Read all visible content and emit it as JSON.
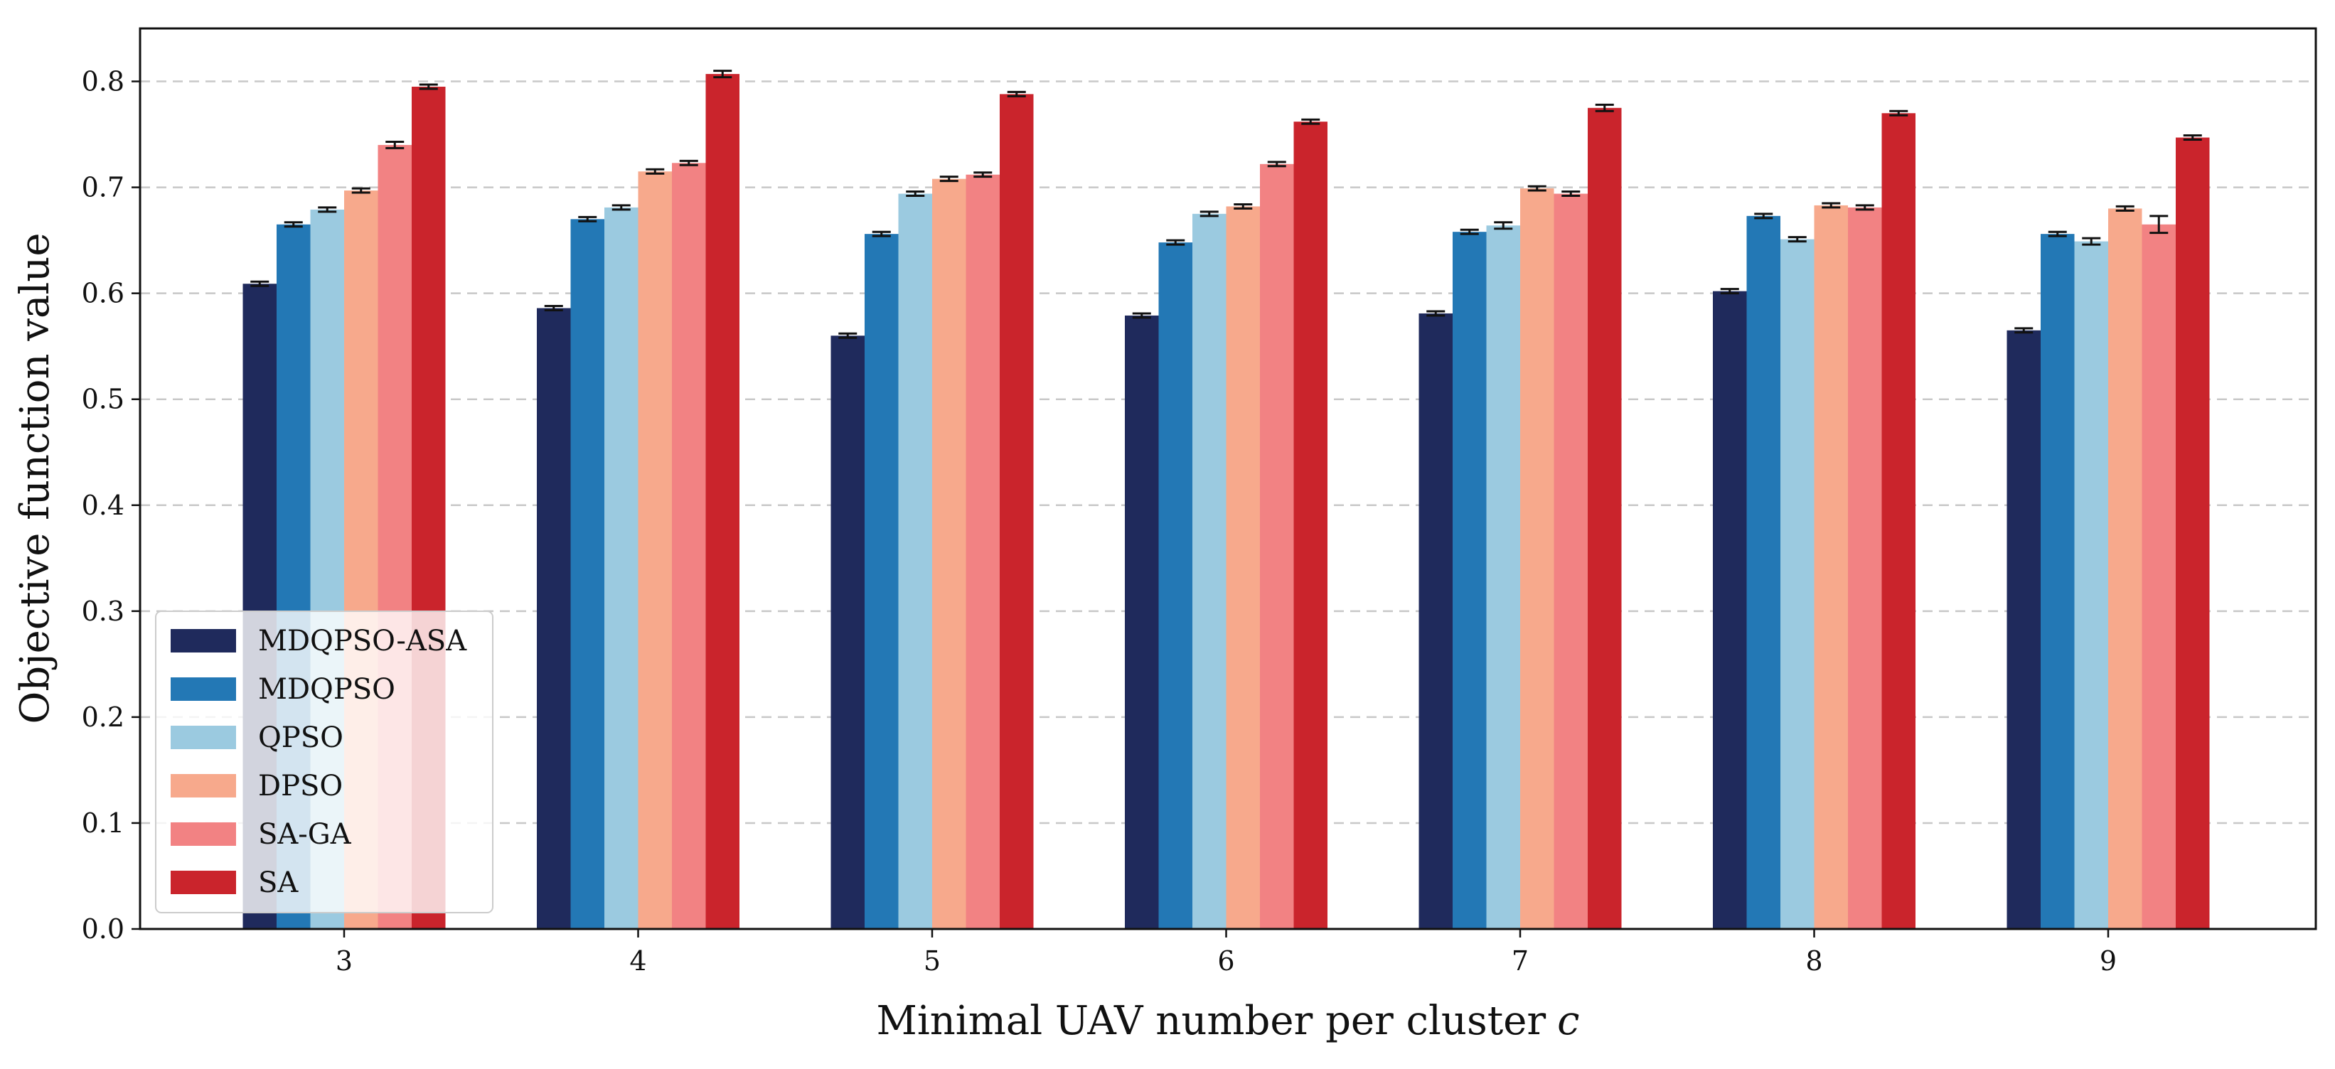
{
  "chart_data": {
    "type": "bar",
    "title": "",
    "xlabel": "Minimal UAV number per cluster",
    "xlabel_var": "c",
    "ylabel": "Objective function value",
    "ylim": [
      0.0,
      0.85
    ],
    "yticks": [
      0.0,
      0.1,
      0.2,
      0.3,
      0.4,
      0.5,
      0.6,
      0.7,
      0.8
    ],
    "ytick_labels": [
      "0.0",
      "0.1",
      "0.2",
      "0.3",
      "0.4",
      "0.5",
      "0.6",
      "0.7",
      "0.8"
    ],
    "grid": "horizontal-dashed",
    "legend_position": "lower-left",
    "categories": [
      "3",
      "4",
      "5",
      "6",
      "7",
      "8",
      "9"
    ],
    "series": [
      {
        "name": "MDQPSO-ASA",
        "color": "#1f2a5c",
        "values": [
          0.609,
          0.586,
          0.56,
          0.579,
          0.581,
          0.602,
          0.565
        ],
        "errors": [
          0.002,
          0.002,
          0.002,
          0.002,
          0.002,
          0.002,
          0.002
        ]
      },
      {
        "name": "MDQPSO",
        "color": "#2378b5",
        "values": [
          0.665,
          0.67,
          0.656,
          0.648,
          0.658,
          0.673,
          0.656
        ],
        "errors": [
          0.002,
          0.002,
          0.002,
          0.002,
          0.002,
          0.002,
          0.002
        ]
      },
      {
        "name": "QPSO",
        "color": "#9bcae0",
        "values": [
          0.679,
          0.681,
          0.694,
          0.675,
          0.664,
          0.651,
          0.649
        ],
        "errors": [
          0.002,
          0.002,
          0.002,
          0.002,
          0.003,
          0.002,
          0.003
        ]
      },
      {
        "name": "DPSO",
        "color": "#f7a98c",
        "values": [
          0.697,
          0.715,
          0.708,
          0.682,
          0.699,
          0.683,
          0.68
        ],
        "errors": [
          0.002,
          0.002,
          0.002,
          0.002,
          0.002,
          0.002,
          0.002
        ]
      },
      {
        "name": "SA-GA",
        "color": "#f28283",
        "values": [
          0.74,
          0.723,
          0.712,
          0.722,
          0.694,
          0.681,
          0.665
        ],
        "errors": [
          0.003,
          0.002,
          0.002,
          0.002,
          0.002,
          0.002,
          0.008
        ]
      },
      {
        "name": "SA",
        "color": "#ca242c",
        "values": [
          0.795,
          0.807,
          0.788,
          0.762,
          0.775,
          0.77,
          0.747
        ],
        "errors": [
          0.002,
          0.003,
          0.002,
          0.002,
          0.003,
          0.002,
          0.002
        ]
      }
    ]
  }
}
